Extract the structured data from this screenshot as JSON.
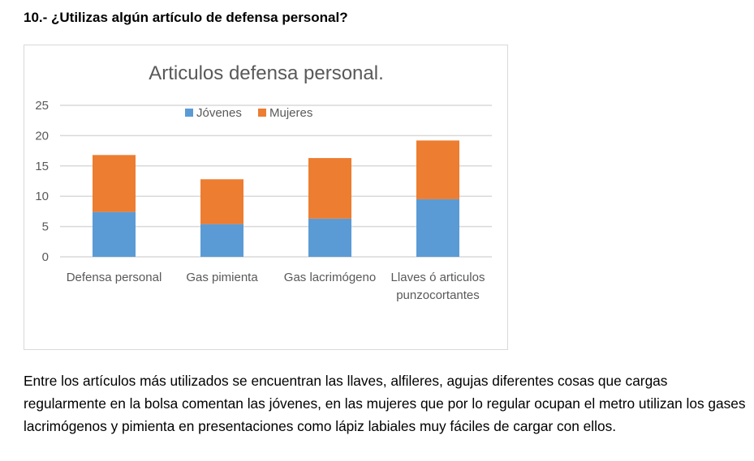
{
  "question": "10.- ¿Utilizas algún artículo de defensa personal?",
  "paragraph": "Entre los artículos más utilizados se encuentran las llaves, alfileres, agujas diferentes cosas que cargas regularmente en la bolsa comentan las jóvenes, en las mujeres que por lo regular ocupan el metro utilizan los gases lacrimógenos y pimienta en presentaciones como lápiz labiales muy fáciles de cargar con ellos.",
  "chart_data": {
    "type": "bar",
    "stacked": true,
    "title": "Articulos defensa personal.",
    "categories": [
      [
        "Defensa personal"
      ],
      [
        "Gas pimienta"
      ],
      [
        "Gas lacrimógeno"
      ],
      [
        "Llaves ó articulos",
        "punzocortantes"
      ]
    ],
    "series": [
      {
        "name": "Jóvenes",
        "color": "#5b9bd5",
        "values": [
          7.4,
          5.4,
          6.3,
          9.5
        ]
      },
      {
        "name": "Mujeres",
        "color": "#ed7d31",
        "values": [
          9.4,
          7.4,
          10.0,
          9.7
        ]
      }
    ],
    "ylim": [
      0,
      25
    ],
    "yticks": [
      0,
      5,
      10,
      15,
      20,
      25
    ],
    "grid": true,
    "legend": "top-center",
    "xlabel": "",
    "ylabel": ""
  }
}
